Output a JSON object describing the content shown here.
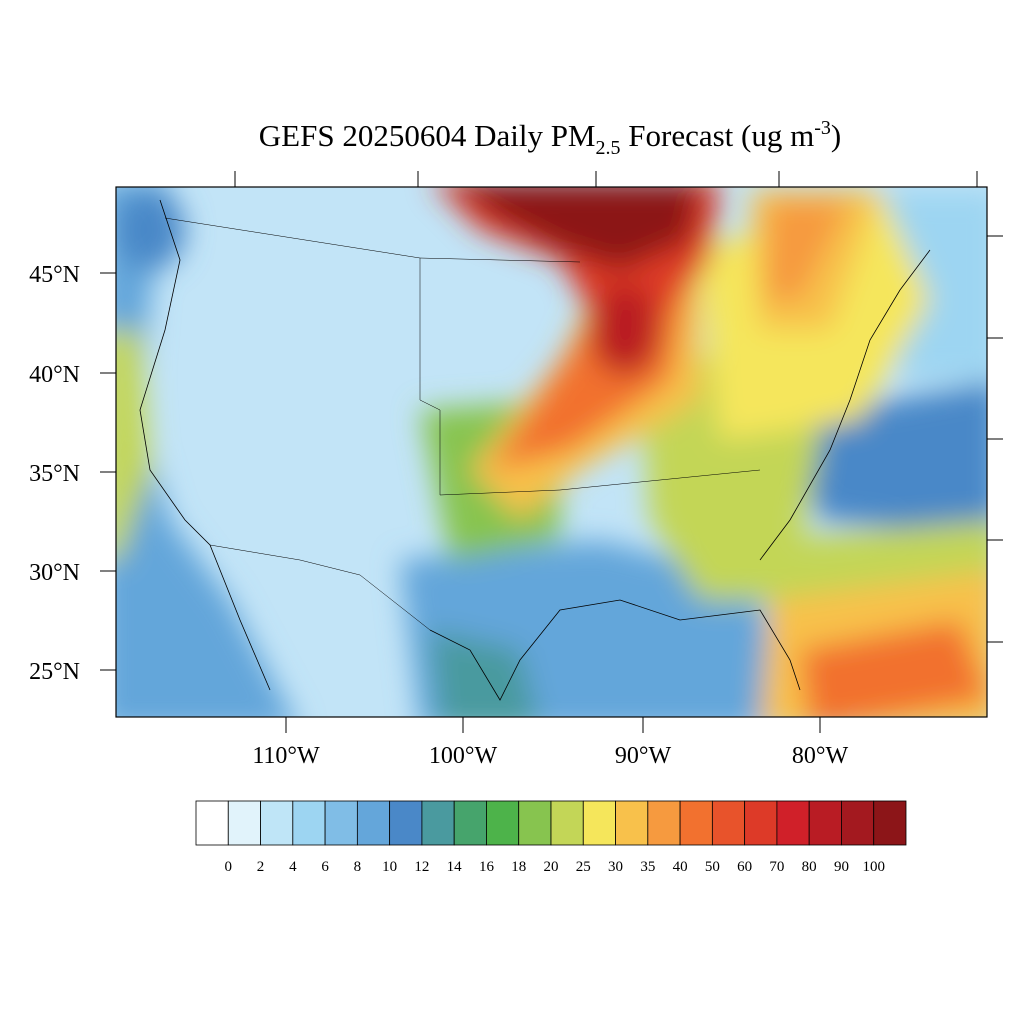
{
  "title": {
    "main": "GEFS 20250604 Daily PM",
    "sub": "2.5",
    "rest": " Forecast (ug m",
    "sup": "-3",
    "end": ")"
  },
  "lat_labels": [
    "45°N",
    "40°N",
    "35°N",
    "30°N",
    "25°N"
  ],
  "lon_labels": [
    "110°W",
    "100°W",
    "90°W",
    "80°W"
  ],
  "colorbar": {
    "levels": [
      0,
      2,
      4,
      6,
      8,
      10,
      12,
      14,
      16,
      18,
      20,
      25,
      30,
      35,
      40,
      50,
      60,
      70,
      80,
      90,
      100
    ],
    "colors": [
      "#ffffff",
      "#e1f3fb",
      "#bfe5f7",
      "#9dd5f2",
      "#80bde6",
      "#64a6da",
      "#4a88c8",
      "#4a9a9f",
      "#46a46c",
      "#4db34a",
      "#87c44f",
      "#c3d657",
      "#f5e65b",
      "#f8c14b",
      "#f69a3f",
      "#f2712f",
      "#e8532b",
      "#dd3a28",
      "#d02029",
      "#b91c24",
      "#a3191f",
      "#8c1518"
    ]
  }
}
